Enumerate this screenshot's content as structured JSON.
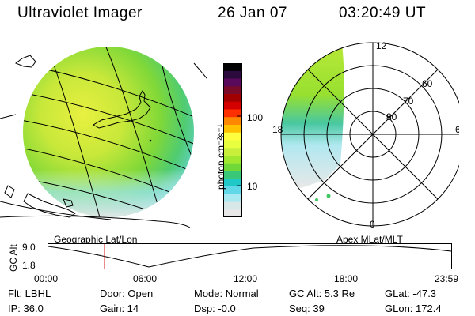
{
  "header": {
    "instrument": "Ultraviolet Imager",
    "date": "26 Jan 07",
    "time": "03:20:49 UT"
  },
  "colorbar": {
    "unit_label": "photon cm⁻²s⁻¹",
    "ticks": [
      "100",
      "10"
    ],
    "colors": [
      "#000000",
      "#2b0a3d",
      "#5a0a5a",
      "#7a0a2a",
      "#a00000",
      "#d40000",
      "#ff3000",
      "#ff8800",
      "#ffc000",
      "#ffff40",
      "#e8ff40",
      "#c8f03a",
      "#a0e830",
      "#70d838",
      "#38c878",
      "#20c8c8",
      "#60d8e8",
      "#a8e8f0",
      "#d8e8e8",
      "#e8e8e8"
    ]
  },
  "polar_plot": {
    "mlt_labels": [
      "12",
      "18",
      "6",
      "0"
    ],
    "lat_labels": [
      "60",
      "70",
      "80"
    ]
  },
  "map_label": "Geographic Lat/Lon",
  "polar_label": "Apex MLat/MLT",
  "altitude_panel": {
    "axis_label": "GC Alt",
    "y_ticks": [
      "9.0",
      "1.8"
    ],
    "x_ticks": [
      "00:00",
      "06:00",
      "12:00",
      "18:00",
      "23:59"
    ],
    "current_time_hours": 3.35,
    "marker_color": "#cc0000"
  },
  "info": {
    "flt": "Flt: LBHL",
    "ip": "IP: 36.0",
    "door": "Door: Open",
    "gain": "Gain: 14",
    "mode": "Mode: Normal",
    "dsp": "Dsp:   -0.0",
    "gc_alt": "GC Alt: 5.3 Re",
    "seq": "Seq: 39",
    "glat": "GLat: -47.3",
    "glon": "GLon: 172.4"
  }
}
